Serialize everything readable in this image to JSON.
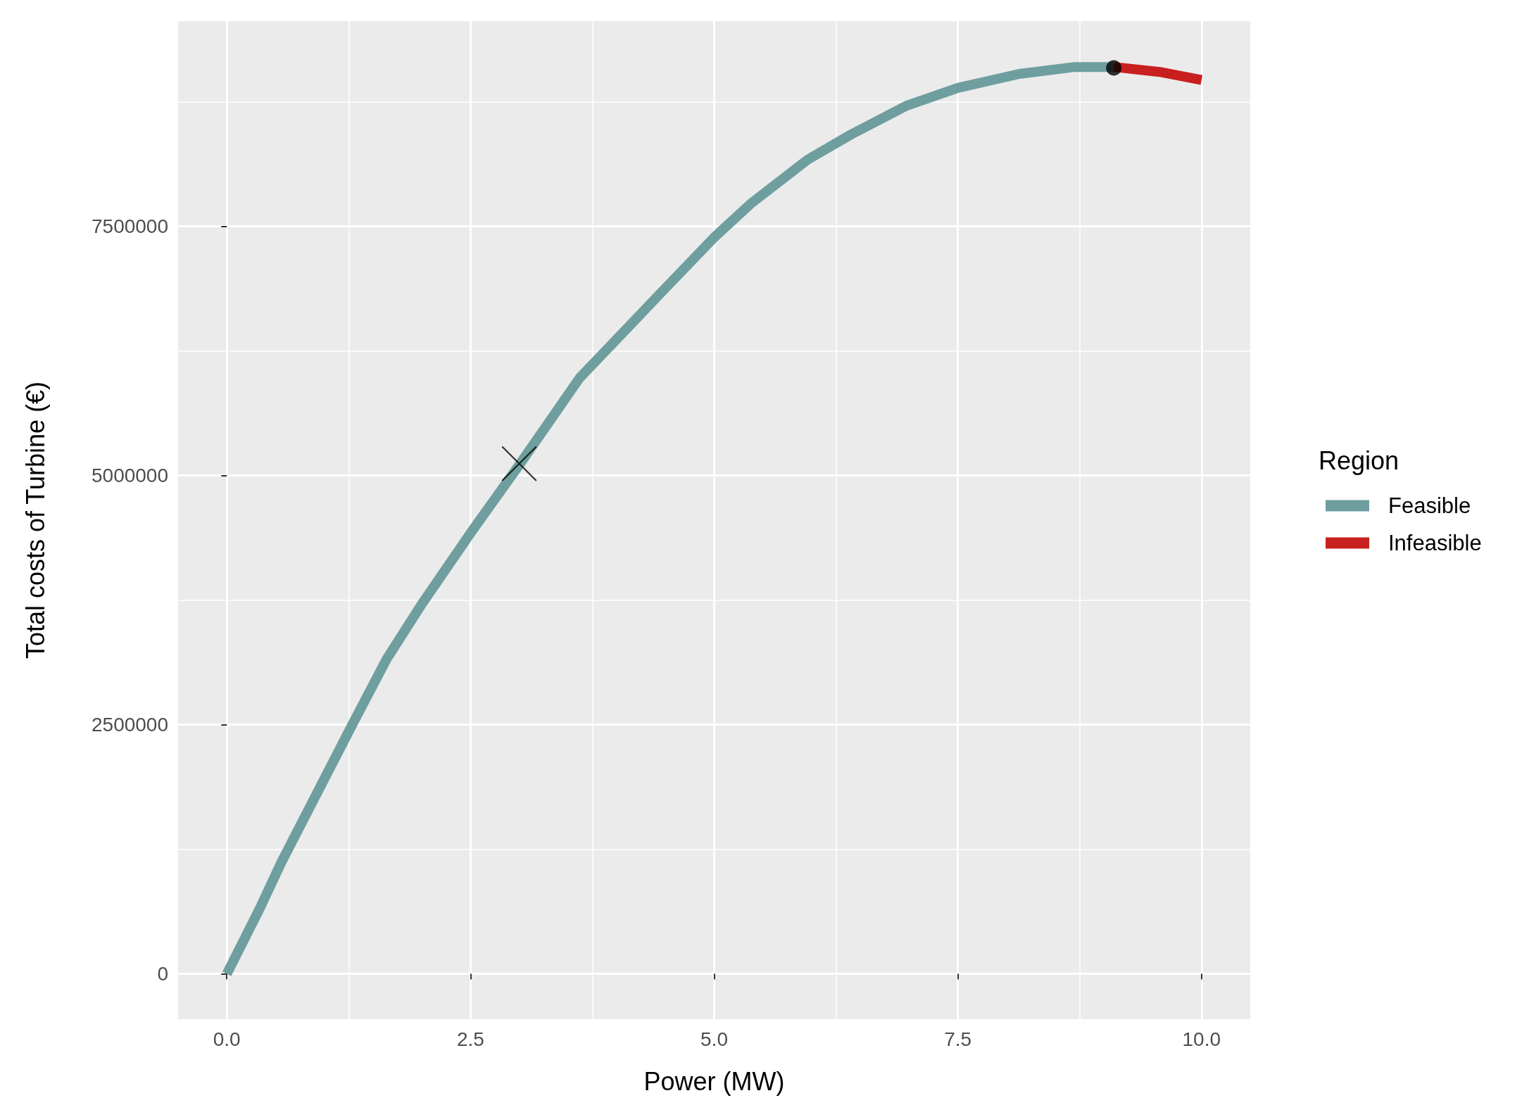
{
  "chart_data": {
    "type": "line",
    "xlabel": "Power (MW)",
    "ylabel": "Total costs of Turbine (€)",
    "legend_title": "Region",
    "legend": "right",
    "grid": true,
    "xlim": [
      -0.5,
      10.5
    ],
    "ylim": [
      -455000,
      9560000
    ],
    "xticks": [
      {
        "value": 0,
        "label": "0.0"
      },
      {
        "value": 2.5,
        "label": "2.5"
      },
      {
        "value": 5,
        "label": "5.0"
      },
      {
        "value": 7.5,
        "label": "7.5"
      },
      {
        "value": 10,
        "label": "10.0"
      }
    ],
    "yticks": [
      0,
      2500000,
      5000000,
      7500000
    ],
    "series": [
      {
        "name": "Feasible",
        "color": "#6f9e9f",
        "x": [
          0,
          0.34,
          0.56,
          1.26,
          1.64,
          2.0,
          2.52,
          3.01,
          3.62,
          4.09,
          4.45,
          5.0,
          5.39,
          5.96,
          6.4,
          6.97,
          7.5,
          8.13,
          8.7,
          9.1
        ],
        "values": [
          0,
          660000,
          1120000,
          2450000,
          3160000,
          3710000,
          4450000,
          5120000,
          5980000,
          6460000,
          6830000,
          7390000,
          7740000,
          8170000,
          8420000,
          8710000,
          8890000,
          9030000,
          9100000,
          9100000
        ]
      },
      {
        "name": "Infeasible",
        "color": "#c8201f",
        "x": [
          9.1,
          9.57,
          10
        ],
        "values": [
          9100000,
          9050000,
          8970000
        ]
      },
      {
        "type": "scatter",
        "marker": "cross",
        "color": "#000000",
        "x": [
          3.0
        ],
        "values": [
          5120000
        ]
      },
      {
        "type": "scatter",
        "marker": "circle",
        "color": "#000000",
        "x": [
          9.1
        ],
        "values": [
          9090000
        ]
      }
    ]
  }
}
